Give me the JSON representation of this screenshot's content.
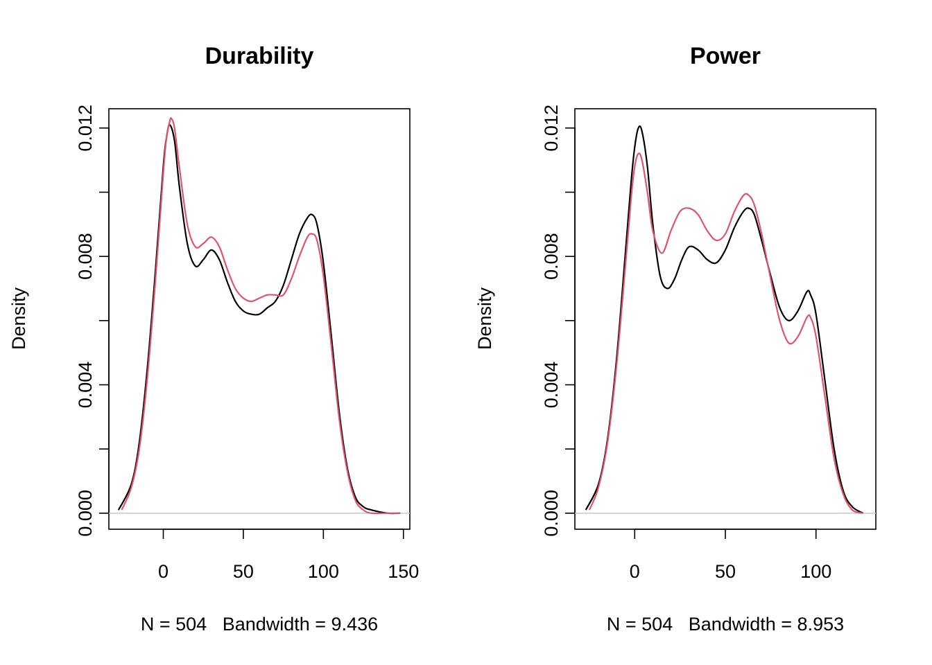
{
  "chart_data": [
    {
      "type": "line",
      "title": "Durability",
      "ylabel": "Density",
      "xlabel": "N = 504   Bandwidth = 9.436",
      "xlim": [
        -34,
        154
      ],
      "ylim": [
        -0.0005,
        0.0126
      ],
      "x_ticks": [
        0,
        50,
        100,
        150
      ],
      "y_ticks": [
        0.0,
        0.002,
        0.004,
        0.006,
        0.008,
        0.01,
        0.012
      ],
      "y_tick_labels": [
        "0.000",
        "",
        "0.004",
        "",
        "0.008",
        "",
        "0.012"
      ],
      "colors": {
        "series_1": "#000000",
        "series_2": "#DF536B",
        "baseline": "#c8c8c8"
      },
      "series": [
        {
          "color": "#000000",
          "x": [
            -28,
            -20,
            -15,
            -10,
            -5,
            0,
            2,
            4,
            7,
            10,
            15,
            20,
            25,
            30,
            35,
            40,
            45,
            50,
            55,
            60,
            65,
            70,
            75,
            80,
            85,
            90,
            93,
            96,
            100,
            105,
            110,
            115,
            120,
            125,
            130,
            140,
            148
          ],
          "y": [
            0.0001,
            0.0009,
            0.0022,
            0.0045,
            0.0075,
            0.0108,
            0.0117,
            0.0121,
            0.0116,
            0.0102,
            0.0084,
            0.0077,
            0.0079,
            0.0082,
            0.0079,
            0.0072,
            0.0066,
            0.0063,
            0.0062,
            0.0062,
            0.0064,
            0.0066,
            0.0071,
            0.0079,
            0.0087,
            0.0092,
            0.0093,
            0.009,
            0.0078,
            0.0055,
            0.0031,
            0.0014,
            0.0005,
            0.0002,
            0.0001,
            0.0,
            0.0
          ]
        },
        {
          "color": "#DF536B",
          "x": [
            -26,
            -20,
            -15,
            -10,
            -5,
            0,
            2,
            4,
            5,
            7,
            10,
            15,
            20,
            25,
            30,
            35,
            40,
            45,
            50,
            55,
            60,
            65,
            70,
            75,
            80,
            85,
            90,
            93,
            96,
            100,
            105,
            110,
            115,
            120,
            125,
            130,
            140,
            148
          ],
          "y": [
            0.0001,
            0.0008,
            0.002,
            0.0042,
            0.0072,
            0.0106,
            0.0117,
            0.0122,
            0.0123,
            0.012,
            0.0108,
            0.009,
            0.0083,
            0.0084,
            0.0086,
            0.0083,
            0.0076,
            0.007,
            0.0067,
            0.0066,
            0.0067,
            0.0068,
            0.0068,
            0.0068,
            0.0073,
            0.008,
            0.0086,
            0.0087,
            0.0085,
            0.0074,
            0.0052,
            0.0029,
            0.0013,
            0.0004,
            0.0001,
            0.0,
            0.0,
            0.0
          ]
        }
      ]
    },
    {
      "type": "line",
      "title": "Power",
      "ylabel": "Density",
      "xlabel": "N = 504   Bandwidth = 8.953",
      "xlim": [
        -33,
        133
      ],
      "ylim": [
        -0.0005,
        0.0126
      ],
      "x_ticks": [
        0,
        50,
        100
      ],
      "y_ticks": [
        0.0,
        0.002,
        0.004,
        0.006,
        0.008,
        0.01,
        0.012
      ],
      "y_tick_labels": [
        "0.000",
        "",
        "0.004",
        "",
        "0.008",
        "",
        "0.012"
      ],
      "colors": {
        "series_1": "#000000",
        "series_2": "#DF536B",
        "baseline": "#c8c8c8"
      },
      "series": [
        {
          "color": "#000000",
          "x": [
            -27,
            -20,
            -15,
            -10,
            -5,
            -2,
            0,
            2,
            4,
            7,
            10,
            14,
            18,
            22,
            26,
            30,
            35,
            40,
            45,
            50,
            55,
            60,
            63,
            66,
            70,
            75,
            80,
            85,
            90,
            95,
            97,
            100,
            105,
            110,
            115,
            120,
            126
          ],
          "y": [
            0.0001,
            0.0009,
            0.0023,
            0.0048,
            0.0082,
            0.0103,
            0.0114,
            0.012,
            0.0119,
            0.0108,
            0.009,
            0.0074,
            0.007,
            0.0073,
            0.0079,
            0.0083,
            0.0082,
            0.0079,
            0.0078,
            0.0082,
            0.0089,
            0.0094,
            0.0095,
            0.0093,
            0.0085,
            0.0074,
            0.0064,
            0.006,
            0.0063,
            0.0069,
            0.0068,
            0.0062,
            0.0041,
            0.002,
            0.0007,
            0.0002,
            0.0
          ]
        },
        {
          "color": "#DF536B",
          "x": [
            -25,
            -20,
            -15,
            -10,
            -5,
            -2,
            0,
            2,
            4,
            7,
            10,
            15,
            20,
            25,
            30,
            35,
            40,
            45,
            50,
            55,
            60,
            63,
            66,
            70,
            75,
            80,
            85,
            90,
            95,
            97,
            100,
            105,
            110,
            115,
            120,
            126
          ],
          "y": [
            0.0001,
            0.0008,
            0.0022,
            0.0046,
            0.0078,
            0.0098,
            0.0108,
            0.0112,
            0.011,
            0.01,
            0.0088,
            0.0081,
            0.0088,
            0.0094,
            0.0095,
            0.0093,
            0.0088,
            0.0085,
            0.0087,
            0.0094,
            0.0099,
            0.0099,
            0.0096,
            0.0087,
            0.0073,
            0.006,
            0.0053,
            0.0055,
            0.0061,
            0.0061,
            0.0055,
            0.0036,
            0.0017,
            0.0006,
            0.0001,
            0.0
          ]
        }
      ]
    }
  ]
}
